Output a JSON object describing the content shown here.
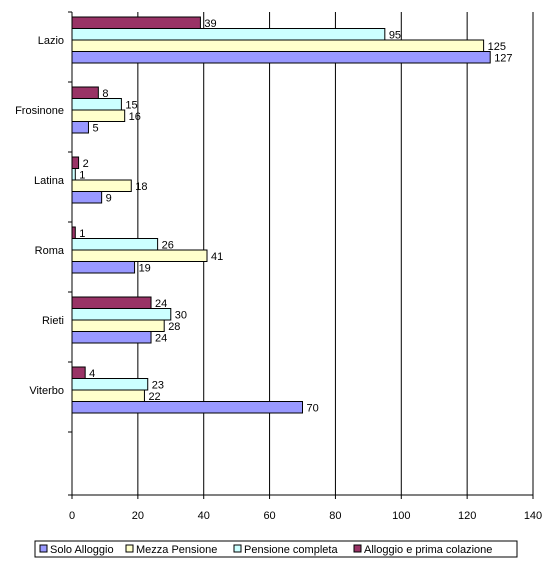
{
  "chart_data": {
    "type": "bar",
    "orientation": "horizontal",
    "categories": [
      "Lazio",
      "Frosinone",
      "Latina",
      "Roma",
      "Rieti",
      "Viterbo"
    ],
    "series": [
      {
        "name": "Solo Alloggio",
        "values": [
          127,
          5,
          9,
          19,
          24,
          70
        ],
        "color": "#9999ff"
      },
      {
        "name": "Mezza Pensione",
        "values": [
          125,
          16,
          18,
          41,
          28,
          22
        ],
        "color": "#ffffcc"
      },
      {
        "name": "Pensione completa",
        "values": [
          95,
          15,
          1,
          26,
          30,
          23
        ],
        "color": "#ccffff"
      },
      {
        "name": "Alloggio e prima colazione",
        "values": [
          39,
          8,
          2,
          1,
          24,
          4
        ],
        "color": "#993366"
      }
    ],
    "xticks": [
      "0",
      "20",
      "40",
      "60",
      "80",
      "100",
      "120",
      "140"
    ],
    "xlim": [
      0,
      140
    ],
    "grid": "vertical",
    "legend_position": "bottom"
  }
}
